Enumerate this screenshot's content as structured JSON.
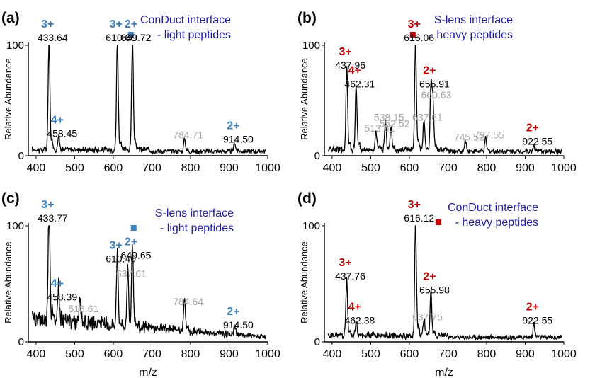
{
  "figure": {
    "xlabel": "m/z",
    "ylabel": "Relative Abundance",
    "colors": {
      "trace": "#000000",
      "blue": "#3a7fc0",
      "red": "#c00000",
      "grey": "#a6a6a6",
      "legend_title": "#1f1fa0",
      "label": "#000000"
    }
  },
  "chart_data": [
    {
      "type": "line",
      "panel": "(a)",
      "legend_title": "ConDuct interface",
      "legend_item": "- light peptides",
      "marker_color": "#3a7fc0",
      "xlim": [
        380,
        1000
      ],
      "ylim": [
        0,
        100
      ],
      "xticks": [
        "400",
        "500",
        "600",
        "700",
        "800",
        "900",
        "1000"
      ],
      "yticks": [
        "0",
        "100"
      ],
      "peaks": [
        {
          "mz": 433.64,
          "rel": 100,
          "label": "433.64",
          "charge": "3+",
          "charge_color": "#3a7fc0",
          "label_color": "#000000"
        },
        {
          "mz": 458.45,
          "rel": 13,
          "label": "458.45",
          "charge": "4+",
          "charge_color": "#3a7fc0",
          "label_color": "#000000"
        },
        {
          "mz": 610.6,
          "rel": 100,
          "label": "610.60",
          "charge": "3+",
          "charge_color": "#3a7fc0",
          "label_color": "#000000"
        },
        {
          "mz": 649.72,
          "rel": 100,
          "label": "649.72",
          "charge": "2+",
          "charge_color": "#3a7fc0",
          "label_color": "#000000"
        },
        {
          "mz": 784.71,
          "rel": 12,
          "label": "784.71",
          "charge": "",
          "charge_color": "#3a7fc0",
          "label_color": "#a6a6a6"
        },
        {
          "mz": 914.5,
          "rel": 8,
          "label": "914.50",
          "charge": "2+",
          "charge_color": "#3a7fc0",
          "label_color": "#000000"
        }
      ]
    },
    {
      "type": "line",
      "panel": "(b)",
      "legend_title": "S-lens interface",
      "legend_item": "- heavy peptides",
      "marker_color": "#c00000",
      "xlim": [
        380,
        1000
      ],
      "ylim": [
        0,
        100
      ],
      "xticks": [
        "400",
        "500",
        "600",
        "700",
        "800",
        "900",
        "1000"
      ],
      "yticks": [
        "0",
        "100"
      ],
      "peaks": [
        {
          "mz": 437.96,
          "rel": 75,
          "label": "437.96",
          "charge": "3+",
          "charge_color": "#c00000",
          "label_color": "#000000"
        },
        {
          "mz": 462.31,
          "rel": 58,
          "label": "462.31",
          "charge": "4+",
          "charge_color": "#c00000",
          "label_color": "#000000"
        },
        {
          "mz": 513.61,
          "rel": 18,
          "label": "513.61",
          "charge": "",
          "charge_color": "#c00000",
          "label_color": "#a6a6a6"
        },
        {
          "mz": 538.15,
          "rel": 28,
          "label": "538.15",
          "charge": "",
          "charge_color": "#c00000",
          "label_color": "#a6a6a6"
        },
        {
          "mz": 552.52,
          "rel": 22,
          "label": "552.52",
          "charge": "",
          "charge_color": "#c00000",
          "label_color": "#a6a6a6"
        },
        {
          "mz": 616.06,
          "rel": 100,
          "label": "616.06",
          "charge": "3+",
          "charge_color": "#c00000",
          "label_color": "#000000"
        },
        {
          "mz": 637.61,
          "rel": 28,
          "label": "637.61",
          "charge": "",
          "charge_color": "#c00000",
          "label_color": "#a6a6a6"
        },
        {
          "mz": 655.91,
          "rel": 58,
          "label": "655.91",
          "charge": "2+",
          "charge_color": "#c00000",
          "label_color": "#000000"
        },
        {
          "mz": 660.63,
          "rel": 48,
          "label": "660.63",
          "charge": "",
          "charge_color": "#c00000",
          "label_color": "#a6a6a6"
        },
        {
          "mz": 745.52,
          "rel": 10,
          "label": "745.52",
          "charge": "",
          "charge_color": "#c00000",
          "label_color": "#a6a6a6"
        },
        {
          "mz": 797.55,
          "rel": 12,
          "label": "797.55",
          "charge": "",
          "charge_color": "#c00000",
          "label_color": "#a6a6a6"
        },
        {
          "mz": 922.55,
          "rel": 6,
          "label": "922.55",
          "charge": "2+",
          "charge_color": "#c00000",
          "label_color": "#000000"
        }
      ]
    },
    {
      "type": "line",
      "panel": "(c)",
      "legend_title": "S-lens interface",
      "legend_item": "- light peptides",
      "marker_color": "#3a7fc0",
      "xlim": [
        380,
        1000
      ],
      "ylim": [
        0,
        100
      ],
      "xticks": [
        "400",
        "500",
        "600",
        "700",
        "800",
        "900",
        "1000"
      ],
      "yticks": [
        "0",
        "100"
      ],
      "peaks": [
        {
          "mz": 433.77,
          "rel": 100,
          "label": "433.77",
          "charge": "3+",
          "charge_color": "#3a7fc0",
          "label_color": "#000000"
        },
        {
          "mz": 458.39,
          "rel": 32,
          "label": "458.39",
          "charge": "4+",
          "charge_color": "#3a7fc0",
          "label_color": "#000000"
        },
        {
          "mz": 513.61,
          "rel": 22,
          "label": "513.61",
          "charge": "",
          "charge_color": "#3a7fc0",
          "label_color": "#a6a6a6"
        },
        {
          "mz": 610.4,
          "rel": 65,
          "label": "610.40",
          "charge": "3+",
          "charge_color": "#3a7fc0",
          "label_color": "#000000"
        },
        {
          "mz": 637.61,
          "rel": 52,
          "label": "637.61",
          "charge": "",
          "charge_color": "#3a7fc0",
          "label_color": "#a6a6a6"
        },
        {
          "mz": 649.65,
          "rel": 68,
          "label": "649.65",
          "charge": "2+",
          "charge_color": "#3a7fc0",
          "label_color": "#000000"
        },
        {
          "mz": 784.64,
          "rel": 28,
          "label": "784.64",
          "charge": "",
          "charge_color": "#3a7fc0",
          "label_color": "#a6a6a6"
        },
        {
          "mz": 914.5,
          "rel": 8,
          "label": "914.50",
          "charge": "2+",
          "charge_color": "#3a7fc0",
          "label_color": "#000000"
        }
      ]
    },
    {
      "type": "line",
      "panel": "(d)",
      "legend_title": "ConDuct interface",
      "legend_item": "- heavy peptides",
      "marker_color": "#c00000",
      "xlim": [
        380,
        1000
      ],
      "ylim": [
        0,
        100
      ],
      "xticks": [
        "400",
        "500",
        "600",
        "700",
        "800",
        "900",
        "1000"
      ],
      "yticks": [
        "0",
        "100"
      ],
      "peaks": [
        {
          "mz": 437.76,
          "rel": 50,
          "label": "437.76",
          "charge": "3+",
          "charge_color": "#c00000",
          "label_color": "#000000"
        },
        {
          "mz": 462.38,
          "rel": 12,
          "label": "462.38",
          "charge": "4+",
          "charge_color": "#c00000",
          "label_color": "#000000"
        },
        {
          "mz": 616.12,
          "rel": 100,
          "label": "616.12",
          "charge": "3+",
          "charge_color": "#c00000",
          "label_color": "#000000"
        },
        {
          "mz": 637.75,
          "rel": 15,
          "label": "637.75",
          "charge": "",
          "charge_color": "#c00000",
          "label_color": "#a6a6a6"
        },
        {
          "mz": 655.98,
          "rel": 38,
          "label": "655.98",
          "charge": "2+",
          "charge_color": "#c00000",
          "label_color": "#000000"
        },
        {
          "mz": 922.55,
          "rel": 12,
          "label": "922.55",
          "charge": "2+",
          "charge_color": "#c00000",
          "label_color": "#000000"
        }
      ]
    }
  ]
}
